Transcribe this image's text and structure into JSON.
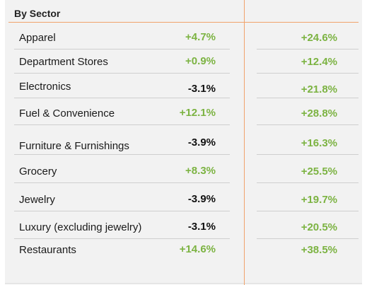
{
  "header": {
    "title": "By Sector"
  },
  "colors": {
    "positive": "#7cb342",
    "negative": "#111111",
    "accent": "#f0a36b"
  },
  "rows": [
    {
      "sector": "Apparel",
      "change1": "+4.7%",
      "change2": "+24.6%"
    },
    {
      "sector": "Department Stores",
      "change1": "+0.9%",
      "change2": "+12.4%"
    },
    {
      "sector": "Electronics",
      "change1": "-3.1%",
      "change2": "+21.8%"
    },
    {
      "sector": "Fuel & Convenience",
      "change1": "+12.1%",
      "change2": "+28.8%"
    },
    {
      "sector": "Furniture & Furnishings",
      "change1": "-3.9%",
      "change2": "+16.3%"
    },
    {
      "sector": "Grocery",
      "change1": "+8.3%",
      "change2": "+25.5%"
    },
    {
      "sector": "Jewelry",
      "change1": "-3.9%",
      "change2": "+19.7%"
    },
    {
      "sector": "Luxury (excluding jewelry)",
      "change1": "-3.1%",
      "change2": "+20.5%"
    },
    {
      "sector": "Restaurants",
      "change1": "+14.6%",
      "change2": "+38.5%"
    }
  ]
}
